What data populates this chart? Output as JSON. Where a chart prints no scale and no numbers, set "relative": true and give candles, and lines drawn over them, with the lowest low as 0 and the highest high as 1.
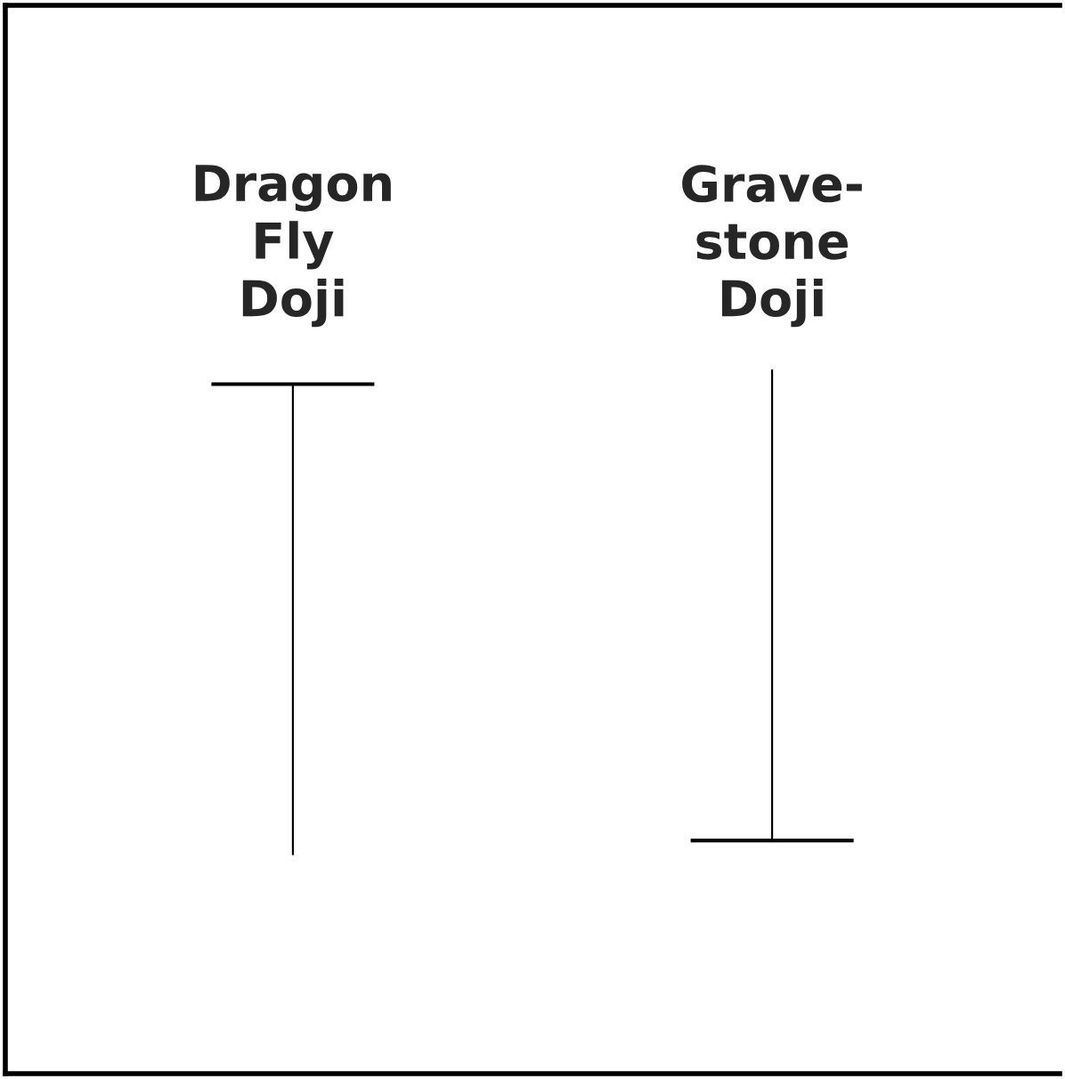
{
  "chart_data": {
    "type": "candlestick",
    "relative": true,
    "categories": [
      "Dragon\nFly\nDoji",
      "Grave-\nstone\nDoji"
    ],
    "ohlc": [
      [
        0.97,
        0.97,
        0,
        0.97
      ],
      [
        0.03,
        1,
        0.03,
        0.03
      ]
    ],
    "color": "#000000"
  }
}
